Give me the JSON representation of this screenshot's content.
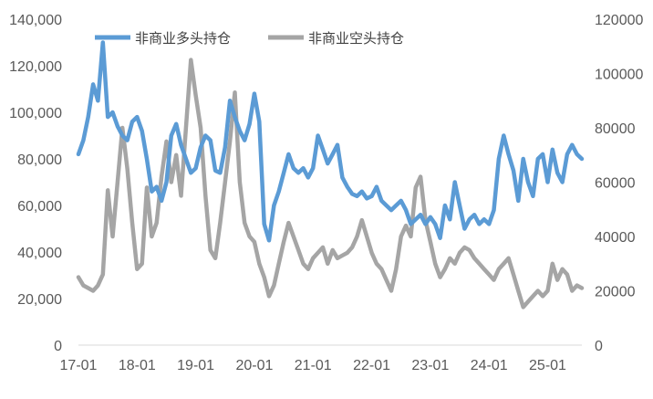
{
  "chart_data": {
    "type": "line",
    "title": "",
    "xlabel": "",
    "ylabel": "",
    "x_tick_labels": [
      "17-01",
      "18-01",
      "19-01",
      "20-01",
      "21-01",
      "22-01",
      "23-01",
      "24-01",
      "25-01"
    ],
    "x_range": [
      "17-01",
      "25-08"
    ],
    "y_left": {
      "range": [
        0,
        140000
      ],
      "tick_labels": [
        "0",
        "20,000",
        "40,000",
        "60,000",
        "80,000",
        "100,000",
        "120,000",
        "140,000"
      ]
    },
    "y_right": {
      "range": [
        0,
        120000
      ],
      "tick_labels": [
        "0",
        "20000",
        "40000",
        "60000",
        "80000",
        "100000",
        "120000"
      ]
    },
    "grid": false,
    "legend_position": "top",
    "series": [
      {
        "name": "非商业多头持仓",
        "axis": "left",
        "color": "#5B9BD5",
        "points": [
          [
            "17-01",
            82000
          ],
          [
            "17-02",
            88000
          ],
          [
            "17-03",
            98000
          ],
          [
            "17-04",
            112000
          ],
          [
            "17-05",
            105000
          ],
          [
            "17-06",
            130000
          ],
          [
            "17-07",
            98000
          ],
          [
            "17-08",
            100000
          ],
          [
            "17-09",
            94000
          ],
          [
            "17-10",
            90000
          ],
          [
            "17-11",
            88000
          ],
          [
            "17-12",
            96000
          ],
          [
            "18-01",
            98000
          ],
          [
            "18-02",
            92000
          ],
          [
            "18-03",
            80000
          ],
          [
            "18-04",
            66000
          ],
          [
            "18-05",
            68000
          ],
          [
            "18-06",
            62000
          ],
          [
            "18-07",
            70000
          ],
          [
            "18-08",
            90000
          ],
          [
            "18-09",
            95000
          ],
          [
            "18-10",
            86000
          ],
          [
            "18-11",
            80000
          ],
          [
            "18-12",
            74000
          ],
          [
            "19-01",
            76000
          ],
          [
            "19-02",
            85000
          ],
          [
            "19-03",
            90000
          ],
          [
            "19-04",
            88000
          ],
          [
            "19-05",
            75000
          ],
          [
            "19-06",
            74000
          ],
          [
            "19-07",
            85000
          ],
          [
            "19-08",
            105000
          ],
          [
            "19-09",
            98000
          ],
          [
            "19-10",
            92000
          ],
          [
            "19-11",
            88000
          ],
          [
            "19-12",
            95000
          ],
          [
            "20-01",
            108000
          ],
          [
            "20-02",
            96000
          ],
          [
            "20-03",
            52000
          ],
          [
            "20-04",
            45000
          ],
          [
            "20-05",
            60000
          ],
          [
            "20-06",
            66000
          ],
          [
            "20-07",
            74000
          ],
          [
            "20-08",
            82000
          ],
          [
            "20-09",
            76000
          ],
          [
            "20-10",
            74000
          ],
          [
            "20-11",
            76000
          ],
          [
            "20-12",
            72000
          ],
          [
            "21-01",
            76000
          ],
          [
            "21-02",
            90000
          ],
          [
            "21-03",
            84000
          ],
          [
            "21-04",
            78000
          ],
          [
            "21-05",
            82000
          ],
          [
            "21-06",
            86000
          ],
          [
            "21-07",
            72000
          ],
          [
            "21-08",
            68000
          ],
          [
            "21-09",
            65000
          ],
          [
            "21-10",
            64000
          ],
          [
            "21-11",
            66000
          ],
          [
            "21-12",
            63000
          ],
          [
            "22-01",
            64000
          ],
          [
            "22-02",
            68000
          ],
          [
            "22-03",
            62000
          ],
          [
            "22-04",
            60000
          ],
          [
            "22-05",
            58000
          ],
          [
            "22-06",
            60000
          ],
          [
            "22-07",
            62000
          ],
          [
            "22-08",
            58000
          ],
          [
            "22-09",
            52000
          ],
          [
            "22-10",
            54000
          ],
          [
            "22-11",
            56000
          ],
          [
            "22-12",
            52000
          ],
          [
            "23-01",
            55000
          ],
          [
            "23-02",
            52000
          ],
          [
            "23-03",
            46000
          ],
          [
            "23-04",
            60000
          ],
          [
            "23-05",
            54000
          ],
          [
            "23-06",
            70000
          ],
          [
            "23-07",
            60000
          ],
          [
            "23-08",
            50000
          ],
          [
            "23-09",
            54000
          ],
          [
            "23-10",
            56000
          ],
          [
            "23-11",
            52000
          ],
          [
            "23-12",
            54000
          ],
          [
            "24-01",
            52000
          ],
          [
            "24-02",
            58000
          ],
          [
            "24-03",
            80000
          ],
          [
            "24-04",
            90000
          ],
          [
            "24-05",
            82000
          ],
          [
            "24-06",
            75000
          ],
          [
            "24-07",
            62000
          ],
          [
            "24-08",
            80000
          ],
          [
            "24-09",
            70000
          ],
          [
            "24-10",
            64000
          ],
          [
            "24-11",
            80000
          ],
          [
            "24-12",
            82000
          ],
          [
            "25-01",
            70000
          ],
          [
            "25-02",
            84000
          ],
          [
            "25-03",
            74000
          ],
          [
            "25-04",
            70000
          ],
          [
            "25-05",
            82000
          ],
          [
            "25-06",
            86000
          ],
          [
            "25-07",
            82000
          ],
          [
            "25-08",
            80000
          ]
        ]
      },
      {
        "name": "非商业空头持仓",
        "axis": "right",
        "color": "#A5A5A5",
        "points": [
          [
            "17-01",
            25000
          ],
          [
            "17-02",
            22000
          ],
          [
            "17-03",
            21000
          ],
          [
            "17-04",
            20000
          ],
          [
            "17-05",
            22000
          ],
          [
            "17-06",
            26000
          ],
          [
            "17-07",
            57000
          ],
          [
            "17-08",
            40000
          ],
          [
            "17-09",
            60000
          ],
          [
            "17-10",
            80000
          ],
          [
            "17-11",
            65000
          ],
          [
            "17-12",
            45000
          ],
          [
            "18-01",
            28000
          ],
          [
            "18-02",
            30000
          ],
          [
            "18-03",
            58000
          ],
          [
            "18-04",
            40000
          ],
          [
            "18-05",
            45000
          ],
          [
            "18-06",
            62000
          ],
          [
            "18-07",
            75000
          ],
          [
            "18-08",
            60000
          ],
          [
            "18-09",
            70000
          ],
          [
            "18-10",
            55000
          ],
          [
            "18-11",
            80000
          ],
          [
            "18-12",
            105000
          ],
          [
            "19-01",
            92000
          ],
          [
            "19-02",
            80000
          ],
          [
            "19-03",
            55000
          ],
          [
            "19-04",
            35000
          ],
          [
            "19-05",
            32000
          ],
          [
            "19-06",
            45000
          ],
          [
            "19-07",
            60000
          ],
          [
            "19-08",
            75000
          ],
          [
            "19-09",
            93000
          ],
          [
            "19-10",
            60000
          ],
          [
            "19-11",
            45000
          ],
          [
            "19-12",
            40000
          ],
          [
            "20-01",
            38000
          ],
          [
            "20-02",
            30000
          ],
          [
            "20-03",
            25000
          ],
          [
            "20-04",
            18000
          ],
          [
            "20-05",
            22000
          ],
          [
            "20-06",
            30000
          ],
          [
            "20-07",
            38000
          ],
          [
            "20-08",
            45000
          ],
          [
            "20-09",
            40000
          ],
          [
            "20-10",
            35000
          ],
          [
            "20-11",
            30000
          ],
          [
            "20-12",
            28000
          ],
          [
            "21-01",
            32000
          ],
          [
            "21-02",
            34000
          ],
          [
            "21-03",
            36000
          ],
          [
            "21-04",
            30000
          ],
          [
            "21-05",
            35000
          ],
          [
            "21-06",
            32000
          ],
          [
            "21-07",
            33000
          ],
          [
            "21-08",
            34000
          ],
          [
            "21-09",
            36000
          ],
          [
            "21-10",
            40000
          ],
          [
            "21-11",
            46000
          ],
          [
            "21-12",
            40000
          ],
          [
            "22-01",
            34000
          ],
          [
            "22-02",
            30000
          ],
          [
            "22-03",
            28000
          ],
          [
            "22-04",
            24000
          ],
          [
            "22-05",
            20000
          ],
          [
            "22-06",
            28000
          ],
          [
            "22-07",
            40000
          ],
          [
            "22-08",
            44000
          ],
          [
            "22-09",
            40000
          ],
          [
            "22-10",
            58000
          ],
          [
            "22-11",
            62000
          ],
          [
            "22-12",
            46000
          ],
          [
            "23-01",
            38000
          ],
          [
            "23-02",
            30000
          ],
          [
            "23-03",
            25000
          ],
          [
            "23-04",
            28000
          ],
          [
            "23-05",
            32000
          ],
          [
            "23-06",
            30000
          ],
          [
            "23-07",
            34000
          ],
          [
            "23-08",
            36000
          ],
          [
            "23-09",
            35000
          ],
          [
            "23-10",
            32000
          ],
          [
            "23-11",
            30000
          ],
          [
            "23-12",
            28000
          ],
          [
            "24-01",
            26000
          ],
          [
            "24-02",
            24000
          ],
          [
            "24-03",
            28000
          ],
          [
            "24-04",
            30000
          ],
          [
            "24-05",
            32000
          ],
          [
            "24-06",
            26000
          ],
          [
            "24-07",
            20000
          ],
          [
            "24-08",
            14000
          ],
          [
            "24-09",
            16000
          ],
          [
            "24-10",
            18000
          ],
          [
            "24-11",
            20000
          ],
          [
            "24-12",
            18000
          ],
          [
            "25-01",
            20000
          ],
          [
            "25-02",
            30000
          ],
          [
            "25-03",
            24000
          ],
          [
            "25-04",
            28000
          ],
          [
            "25-05",
            26000
          ],
          [
            "25-06",
            20000
          ],
          [
            "25-07",
            22000
          ],
          [
            "25-08",
            21000
          ]
        ]
      }
    ]
  }
}
